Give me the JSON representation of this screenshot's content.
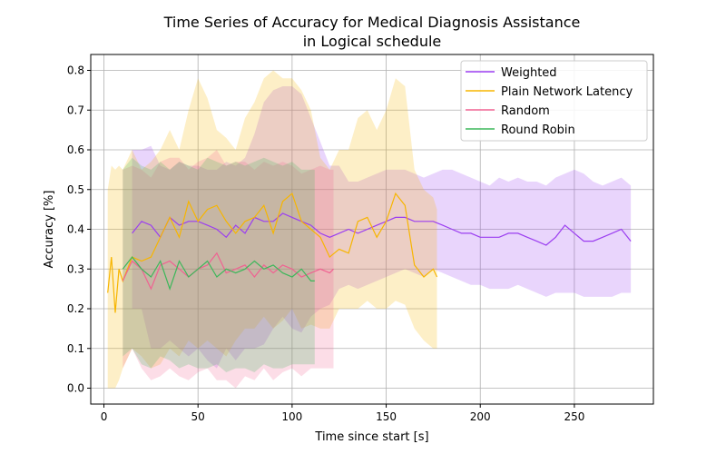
{
  "chart_data": {
    "type": "line",
    "title_lines": [
      "Time Series of Accuracy for Medical Diagnosis Assistance",
      "in Logical schedule"
    ],
    "xlabel": "Time since start [s]",
    "ylabel": "Accuracy [%]",
    "xlim": [
      -7,
      292
    ],
    "ylim": [
      -0.04,
      0.84
    ],
    "xticks": [
      0,
      50,
      100,
      150,
      200,
      250
    ],
    "yticks": [
      0.0,
      0.1,
      0.2,
      0.3,
      0.4,
      0.5,
      0.6,
      0.7,
      0.8
    ],
    "grid": true,
    "legend_position": "top-right",
    "series": [
      {
        "name": "Weighted",
        "color": "#9b3ef0",
        "x": [
          15,
          20,
          25,
          30,
          35,
          40,
          45,
          50,
          55,
          60,
          65,
          70,
          75,
          80,
          85,
          90,
          95,
          100,
          105,
          110,
          115,
          120,
          125,
          130,
          135,
          140,
          145,
          150,
          155,
          160,
          165,
          170,
          175,
          180,
          185,
          190,
          195,
          200,
          205,
          210,
          215,
          220,
          225,
          230,
          235,
          240,
          245,
          250,
          255,
          260,
          265,
          270,
          275,
          280
        ],
        "y": [
          0.39,
          0.42,
          0.41,
          0.38,
          0.43,
          0.41,
          0.42,
          0.42,
          0.41,
          0.4,
          0.38,
          0.41,
          0.39,
          0.43,
          0.42,
          0.42,
          0.44,
          0.43,
          0.42,
          0.41,
          0.39,
          0.38,
          0.39,
          0.4,
          0.39,
          0.4,
          0.41,
          0.42,
          0.43,
          0.43,
          0.42,
          0.42,
          0.42,
          0.41,
          0.4,
          0.39,
          0.39,
          0.38,
          0.38,
          0.38,
          0.39,
          0.39,
          0.38,
          0.37,
          0.36,
          0.38,
          0.41,
          0.39,
          0.37,
          0.37,
          0.38,
          0.39,
          0.4,
          0.37
        ],
        "lower": [
          0.2,
          0.2,
          0.1,
          0.1,
          0.12,
          0.1,
          0.08,
          0.1,
          0.07,
          0.05,
          0.1,
          0.07,
          0.1,
          0.1,
          0.11,
          0.15,
          0.18,
          0.15,
          0.14,
          0.18,
          0.2,
          0.21,
          0.25,
          0.26,
          0.25,
          0.26,
          0.27,
          0.28,
          0.29,
          0.3,
          0.29,
          0.28,
          0.3,
          0.29,
          0.28,
          0.27,
          0.26,
          0.26,
          0.25,
          0.25,
          0.25,
          0.26,
          0.25,
          0.24,
          0.23,
          0.24,
          0.24,
          0.24,
          0.23,
          0.23,
          0.23,
          0.23,
          0.24,
          0.24
        ],
        "upper": [
          0.6,
          0.6,
          0.61,
          0.56,
          0.55,
          0.57,
          0.56,
          0.56,
          0.55,
          0.55,
          0.57,
          0.56,
          0.58,
          0.64,
          0.72,
          0.75,
          0.76,
          0.76,
          0.74,
          0.68,
          0.62,
          0.56,
          0.56,
          0.52,
          0.52,
          0.53,
          0.54,
          0.55,
          0.55,
          0.55,
          0.54,
          0.53,
          0.54,
          0.55,
          0.55,
          0.54,
          0.53,
          0.52,
          0.51,
          0.53,
          0.52,
          0.53,
          0.52,
          0.52,
          0.51,
          0.53,
          0.54,
          0.55,
          0.54,
          0.52,
          0.51,
          0.52,
          0.53,
          0.51
        ]
      },
      {
        "name": "Plain Network Latency",
        "color": "#f7b500",
        "x": [
          2,
          4,
          6,
          8,
          10,
          15,
          20,
          25,
          30,
          35,
          40,
          45,
          50,
          55,
          60,
          65,
          70,
          75,
          80,
          85,
          90,
          95,
          100,
          105,
          110,
          115,
          120,
          125,
          130,
          135,
          140,
          145,
          150,
          155,
          160,
          165,
          170,
          175,
          177
        ],
        "y": [
          0.24,
          0.33,
          0.19,
          0.3,
          0.27,
          0.33,
          0.32,
          0.33,
          0.38,
          0.43,
          0.38,
          0.47,
          0.42,
          0.45,
          0.46,
          0.42,
          0.39,
          0.42,
          0.43,
          0.46,
          0.39,
          0.47,
          0.49,
          0.42,
          0.4,
          0.38,
          0.33,
          0.35,
          0.34,
          0.42,
          0.43,
          0.38,
          0.42,
          0.49,
          0.46,
          0.31,
          0.28,
          0.3,
          0.28
        ],
        "lower": [
          0.0,
          0.0,
          0.0,
          0.02,
          0.05,
          0.1,
          0.08,
          0.05,
          0.06,
          0.1,
          0.08,
          0.12,
          0.1,
          0.12,
          0.1,
          0.08,
          0.12,
          0.15,
          0.15,
          0.18,
          0.15,
          0.17,
          0.2,
          0.15,
          0.16,
          0.15,
          0.15,
          0.2,
          0.2,
          0.2,
          0.22,
          0.2,
          0.2,
          0.22,
          0.21,
          0.15,
          0.12,
          0.1,
          0.1
        ],
        "upper": [
          0.5,
          0.56,
          0.55,
          0.56,
          0.55,
          0.6,
          0.55,
          0.57,
          0.6,
          0.65,
          0.6,
          0.7,
          0.78,
          0.73,
          0.65,
          0.63,
          0.6,
          0.68,
          0.72,
          0.78,
          0.8,
          0.78,
          0.78,
          0.75,
          0.7,
          0.58,
          0.55,
          0.6,
          0.6,
          0.68,
          0.7,
          0.65,
          0.7,
          0.78,
          0.76,
          0.55,
          0.5,
          0.48,
          0.45
        ]
      },
      {
        "name": "Random",
        "color": "#f06292",
        "x": [
          10,
          15,
          20,
          25,
          30,
          35,
          40,
          45,
          50,
          55,
          60,
          65,
          70,
          75,
          80,
          85,
          90,
          95,
          100,
          105,
          110,
          115,
          120,
          122
        ],
        "y": [
          0.27,
          0.32,
          0.3,
          0.25,
          0.31,
          0.32,
          0.3,
          0.28,
          0.3,
          0.31,
          0.34,
          0.29,
          0.3,
          0.31,
          0.28,
          0.31,
          0.29,
          0.31,
          0.3,
          0.28,
          0.29,
          0.3,
          0.29,
          0.3
        ],
        "lower": [
          0.05,
          0.1,
          0.05,
          0.02,
          0.03,
          0.05,
          0.03,
          0.02,
          0.04,
          0.05,
          0.02,
          0.02,
          0.0,
          0.03,
          0.02,
          0.05,
          0.02,
          0.04,
          0.05,
          0.03,
          0.05,
          0.05,
          0.05,
          0.05
        ],
        "upper": [
          0.55,
          0.56,
          0.55,
          0.53,
          0.57,
          0.58,
          0.58,
          0.55,
          0.57,
          0.58,
          0.6,
          0.56,
          0.57,
          0.57,
          0.55,
          0.57,
          0.56,
          0.57,
          0.56,
          0.54,
          0.55,
          0.56,
          0.55,
          0.55
        ]
      },
      {
        "name": "Round Robin",
        "color": "#3cb75a",
        "x": [
          10,
          15,
          20,
          25,
          30,
          35,
          40,
          45,
          50,
          55,
          60,
          65,
          70,
          75,
          80,
          85,
          90,
          95,
          100,
          105,
          110,
          112
        ],
        "y": [
          0.3,
          0.33,
          0.3,
          0.28,
          0.32,
          0.25,
          0.32,
          0.28,
          0.3,
          0.32,
          0.28,
          0.3,
          0.29,
          0.3,
          0.32,
          0.3,
          0.31,
          0.29,
          0.28,
          0.3,
          0.27,
          0.27
        ],
        "lower": [
          0.08,
          0.1,
          0.06,
          0.05,
          0.08,
          0.07,
          0.05,
          0.06,
          0.05,
          0.05,
          0.06,
          0.04,
          0.05,
          0.05,
          0.04,
          0.06,
          0.05,
          0.05,
          0.06,
          0.06,
          0.06,
          0.06
        ],
        "upper": [
          0.55,
          0.58,
          0.56,
          0.55,
          0.57,
          0.55,
          0.57,
          0.56,
          0.55,
          0.58,
          0.57,
          0.56,
          0.57,
          0.56,
          0.57,
          0.58,
          0.57,
          0.56,
          0.57,
          0.55,
          0.55,
          0.55
        ]
      }
    ]
  }
}
